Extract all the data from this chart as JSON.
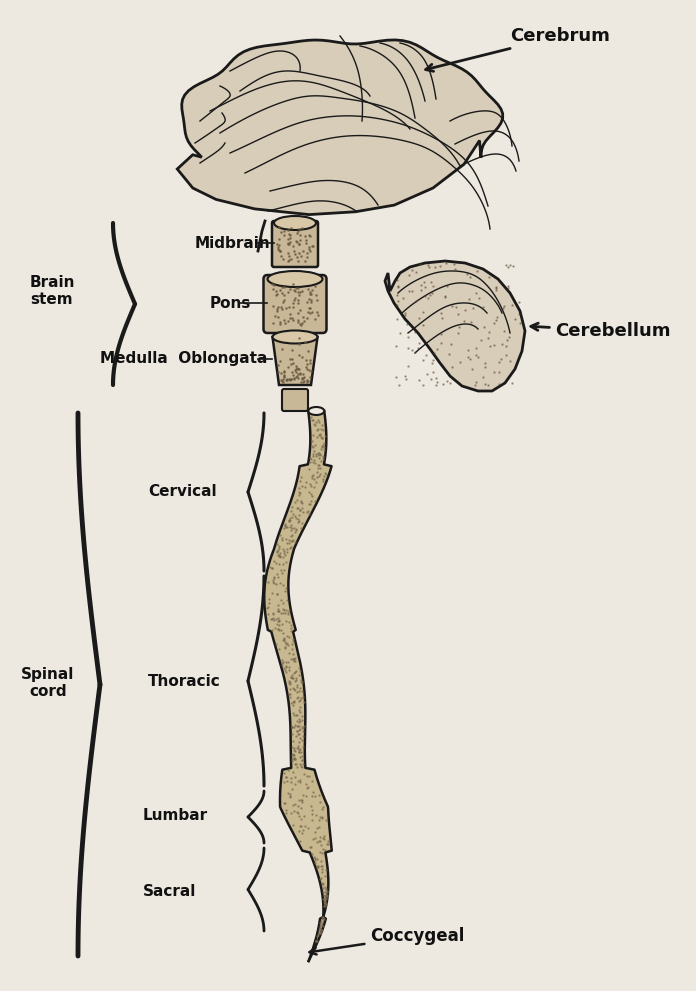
{
  "bg_color": "#ede8e0",
  "line_color": "#1a1a1a",
  "text_color": "#111111",
  "brain_fill": "#d8cdb8",
  "brainstem_fill": "#c8b898",
  "cerebellum_fill": "#d8cdb8",
  "labels": {
    "cerebrum": "Cerebrum",
    "midbrain": "Midbrain",
    "pons": "Pons",
    "medulla": "Medulla  Oblongata",
    "cerebellum": "Cerebellum",
    "brain_stem_line1": "Brain",
    "brain_stem_line2": "stem",
    "spinal_cord_line1": "Spinal",
    "spinal_cord_line2": "cord",
    "cervical": "Cervical",
    "thoracic": "Thoracic",
    "lumbar": "Lumbar",
    "sacral": "Sacral",
    "coccygeal": "Coccygeal"
  },
  "font_size_label": 10,
  "font_size_small": 9
}
